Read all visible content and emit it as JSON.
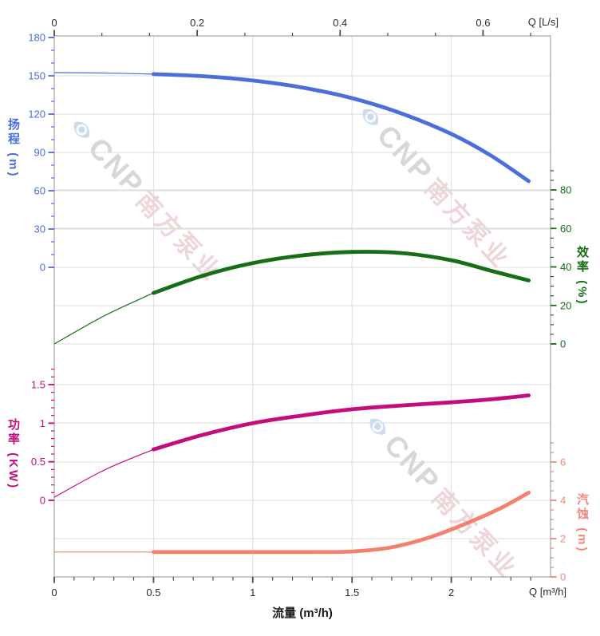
{
  "chart_data": {
    "type": "line",
    "description": "Pump performance curves: head, efficiency, power and NPSH versus flow rate",
    "x_bottom": {
      "label_corner": "Q [m³/h]",
      "axis_title": "流量 (m³/h)",
      "range": [
        0,
        2.5
      ],
      "major_ticks": [
        0,
        0.5,
        1,
        1.5,
        2
      ],
      "minor_step": 0.1,
      "color": "#4a4a4a"
    },
    "x_top": {
      "label_corner": "Q [L/s]",
      "range": [
        0,
        0.6944
      ],
      "major_ticks": [
        0,
        0.2,
        0.4,
        0.6
      ],
      "minor_divisions_per_major": 3,
      "color": "#4a4a4a"
    },
    "y_head": {
      "title": "扬程 (m)",
      "color": "#4a6edb",
      "range": [
        0,
        180
      ],
      "major_ticks": [
        0,
        30,
        60,
        90,
        120,
        150,
        180
      ],
      "minor_step": 10,
      "minor_extend": 180,
      "side": "left"
    },
    "y_eff": {
      "title": "效率 (%)",
      "color": "#166f16",
      "range": [
        0,
        80
      ],
      "major_ticks": [
        0,
        20,
        40,
        60,
        80
      ],
      "minor_step": 5,
      "minor_extend": 90,
      "side": "right"
    },
    "y_power": {
      "title": "功率 (KW)",
      "color": "#c40d7d",
      "range": [
        0,
        1.5
      ],
      "major_ticks": [
        0,
        0.5,
        1,
        1.5
      ],
      "minor_step": 0.1,
      "minor_extend": 1.7,
      "side": "left"
    },
    "y_npsh": {
      "title": "汽蚀 (m)",
      "color": "#f4867a",
      "range": [
        0,
        6
      ],
      "major_ticks": [
        0,
        2,
        4,
        6
      ],
      "minor_step": 0.5,
      "minor_extend": 7,
      "side": "right"
    },
    "grid": true,
    "grid_color": "#dcdcdc",
    "border_color": "#ababab",
    "series": [
      {
        "name": "head",
        "axis": "y_head",
        "color": "#4a6edb",
        "rated_from": 0.5,
        "points": [
          [
            0,
            152.5
          ],
          [
            0.25,
            152.2
          ],
          [
            0.5,
            151.3
          ],
          [
            0.75,
            149.7
          ],
          [
            1,
            146.3
          ],
          [
            1.25,
            140.8
          ],
          [
            1.5,
            132.5
          ],
          [
            1.75,
            120.5
          ],
          [
            2,
            104.5
          ],
          [
            2.2,
            87.5
          ],
          [
            2.39,
            67.5
          ]
        ]
      },
      {
        "name": "efficiency",
        "axis": "y_eff",
        "color": "#166f16",
        "rated_from": 0.5,
        "points": [
          [
            0,
            0
          ],
          [
            0.25,
            14.5
          ],
          [
            0.5,
            26.5
          ],
          [
            0.75,
            35.5
          ],
          [
            1,
            42
          ],
          [
            1.25,
            46
          ],
          [
            1.5,
            47.8
          ],
          [
            1.75,
            47.2
          ],
          [
            2,
            43.5
          ],
          [
            2.2,
            38
          ],
          [
            2.39,
            33
          ]
        ]
      },
      {
        "name": "power",
        "axis": "y_power",
        "color": "#c40d7d",
        "rated_from": 0.5,
        "points": [
          [
            0,
            0.04
          ],
          [
            0.25,
            0.39
          ],
          [
            0.5,
            0.66
          ],
          [
            0.75,
            0.85
          ],
          [
            1,
            1
          ],
          [
            1.25,
            1.1
          ],
          [
            1.5,
            1.18
          ],
          [
            1.75,
            1.23
          ],
          [
            2,
            1.27
          ],
          [
            2.2,
            1.31
          ],
          [
            2.39,
            1.36
          ]
        ]
      },
      {
        "name": "npsh",
        "axis": "y_npsh",
        "color": "#f4806e",
        "rated_from": 0.5,
        "points": [
          [
            0,
            1.3
          ],
          [
            0.5,
            1.3
          ],
          [
            1,
            1.3
          ],
          [
            1.3,
            1.3
          ],
          [
            1.5,
            1.33
          ],
          [
            1.7,
            1.55
          ],
          [
            1.9,
            2.1
          ],
          [
            2.1,
            2.9
          ],
          [
            2.25,
            3.6
          ],
          [
            2.39,
            4.4
          ]
        ]
      }
    ]
  },
  "watermark": {
    "cnp": "CNP",
    "brand": "南方泵业",
    "logo_color": "#ccdaee"
  }
}
